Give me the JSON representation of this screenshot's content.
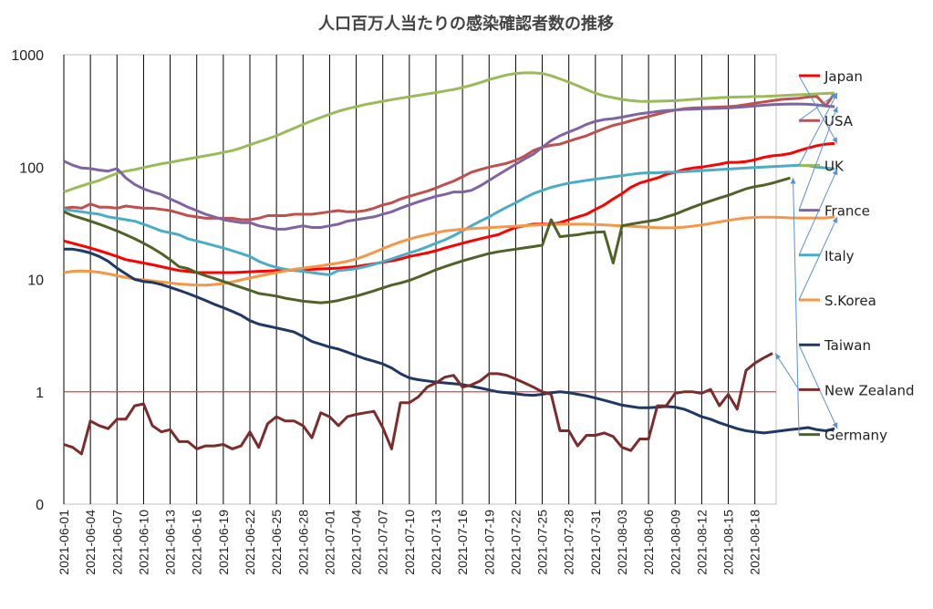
{
  "chart_data": {
    "type": "line",
    "title": "人口百万人当たりの感染確認者数の推移",
    "xlabel": "",
    "ylabel": "",
    "y_scale": "log",
    "ylim": [
      0.1,
      1000
    ],
    "y_ticks": [
      {
        "value": 1000,
        "label": "1000"
      },
      {
        "value": 100,
        "label": "100"
      },
      {
        "value": 10,
        "label": "10"
      },
      {
        "value": 1,
        "label": "1"
      },
      {
        "value": 0.1,
        "label": "0"
      }
    ],
    "x_ticks": [
      "2021-06-01",
      "2021-06-04",
      "2021-06-07",
      "2021-06-10",
      "2021-06-13",
      "2021-06-16",
      "2021-06-19",
      "2021-06-22",
      "2021-06-25",
      "2021-06-28",
      "2021-07-01",
      "2021-07-04",
      "2021-07-07",
      "2021-07-10",
      "2021-07-13",
      "2021-07-16",
      "2021-07-19",
      "2021-07-22",
      "2021-07-25",
      "2021-07-28",
      "2021-07-31",
      "2021-08-03",
      "2021-08-06",
      "2021-08-09",
      "2021-08-12",
      "2021-08-15",
      "2021-08-18"
    ],
    "grid": "vertical lines at each x tick",
    "reference_line": {
      "value": 1,
      "color": "#e04040"
    },
    "legend_position": "right",
    "series": [
      {
        "name": "Japan",
        "color": "#ff0000",
        "values": [
          22,
          21,
          20,
          19,
          18,
          17,
          16,
          15,
          14.5,
          14,
          13.5,
          13,
          12.5,
          12,
          11.8,
          11.5,
          11.5,
          11.5,
          11.5,
          11.5,
          11.6,
          11.7,
          11.8,
          11.9,
          12,
          12,
          12.1,
          12.2,
          12.3,
          12.4,
          12.5,
          12.6,
          12.8,
          13,
          13.4,
          13.8,
          14.2,
          14.6,
          15.2,
          16,
          16.6,
          17.2,
          18,
          19,
          20,
          21,
          22,
          23,
          24,
          25,
          27,
          29,
          30,
          31,
          31,
          31,
          32,
          34,
          36,
          38,
          42,
          46,
          52,
          58,
          66,
          72,
          76,
          80,
          86,
          90,
          95,
          98,
          100,
          103,
          106,
          110,
          110,
          112,
          116,
          122,
          126,
          128,
          132,
          140,
          148,
          155,
          160,
          162
        ]
      },
      {
        "name": "USA",
        "color": "#c0504d",
        "values": [
          43,
          44,
          43,
          47,
          44,
          44,
          43,
          45,
          44,
          43,
          43,
          42,
          41,
          39,
          37,
          36,
          35,
          35,
          35,
          35,
          34,
          34,
          35,
          37,
          37,
          37,
          38,
          38,
          38,
          39,
          40,
          41,
          40,
          40,
          41,
          43,
          46,
          48,
          52,
          55,
          58,
          61,
          65,
          70,
          75,
          82,
          90,
          95,
          100,
          104,
          108,
          115,
          125,
          140,
          150,
          156,
          160,
          170,
          180,
          190,
          205,
          220,
          235,
          245,
          258,
          270,
          282,
          295,
          310,
          322,
          330,
          335,
          338,
          340,
          342,
          345,
          350,
          360,
          370,
          380,
          390,
          400,
          405,
          410,
          420,
          425,
          350,
          455
        ]
      },
      {
        "name": "UK",
        "color": "#9bbb59",
        "values": [
          60,
          64,
          68,
          72,
          76,
          82,
          88,
          92,
          95,
          99,
          103,
          107,
          110,
          114,
          118,
          122,
          126,
          130,
          135,
          140,
          148,
          158,
          168,
          178,
          190,
          205,
          222,
          240,
          258,
          276,
          295,
          314,
          330,
          345,
          360,
          372,
          385,
          398,
          410,
          422,
          435,
          448,
          460,
          475,
          490,
          510,
          535,
          565,
          600,
          630,
          660,
          680,
          690,
          690,
          680,
          650,
          610,
          570,
          530,
          490,
          455,
          430,
          415,
          400,
          390,
          385,
          384,
          386,
          388,
          390,
          395,
          400,
          405,
          410,
          415,
          418,
          420,
          422,
          424,
          425,
          428,
          432,
          436,
          440,
          444,
          448,
          452,
          456
        ]
      },
      {
        "name": "France",
        "color": "#8064a2",
        "values": [
          113,
          104,
          98,
          97,
          94,
          92,
          97,
          80,
          70,
          64,
          60,
          57,
          52,
          48,
          44,
          41,
          38,
          36,
          34,
          33,
          32,
          32,
          30,
          29,
          28,
          28,
          29,
          30,
          29,
          29,
          30,
          31,
          33,
          34,
          35,
          36,
          38,
          40,
          43,
          46,
          49,
          52,
          55,
          57,
          60,
          60,
          62,
          68,
          76,
          85,
          95,
          106,
          118,
          130,
          150,
          172,
          190,
          205,
          220,
          240,
          255,
          265,
          270,
          278,
          288,
          298,
          305,
          312,
          318,
          322,
          326,
          328,
          330,
          332,
          334,
          336,
          340,
          345,
          350,
          355,
          360,
          362,
          364,
          364,
          362,
          358,
          350,
          345
        ]
      },
      {
        "name": "Italy",
        "color": "#4bacc6",
        "values": [
          42,
          41,
          40,
          39,
          38,
          36,
          35,
          34,
          33,
          31,
          29,
          27,
          26,
          25,
          23,
          22,
          21,
          20,
          19,
          18,
          17,
          16,
          14.5,
          13.5,
          12.8,
          12.3,
          12,
          11.8,
          11.5,
          11.2,
          11,
          12,
          12.2,
          12.5,
          13,
          13.6,
          14.4,
          15.2,
          16.2,
          17.2,
          18.2,
          19.5,
          21,
          22.5,
          24.5,
          27,
          30,
          33,
          36,
          40,
          44,
          48,
          53,
          58,
          62,
          66,
          69,
          72,
          74,
          76,
          78,
          80,
          82,
          84,
          86,
          88,
          89,
          89,
          90,
          90,
          91,
          92,
          93,
          94,
          95,
          96,
          97,
          98,
          99,
          100,
          101,
          102,
          103,
          104,
          103,
          100,
          98,
          96
        ]
      },
      {
        "name": "S.Korea",
        "color": "#f79646",
        "values": [
          11.5,
          11.8,
          11.9,
          11.8,
          11.6,
          11.2,
          10.8,
          10.4,
          10.1,
          9.9,
          9.7,
          9.5,
          9.3,
          9.1,
          9.0,
          8.9,
          8.9,
          9.0,
          9.2,
          9.5,
          9.9,
          10.3,
          10.7,
          11.1,
          11.5,
          11.9,
          12.3,
          12.6,
          12.9,
          13.2,
          13.6,
          14.0,
          14.5,
          15.2,
          16.2,
          17.4,
          18.8,
          20.2,
          21.6,
          22.8,
          24,
          25,
          26,
          27,
          27.5,
          28,
          28.3,
          28.6,
          28.9,
          29.2,
          29.5,
          29.8,
          30.1,
          30.4,
          30.6,
          30.8,
          31,
          31,
          31,
          31,
          30.8,
          30.6,
          30.3,
          30,
          29.7,
          29.4,
          29.1,
          28.9,
          28.8,
          28.9,
          29.2,
          29.8,
          30.5,
          31.5,
          32.5,
          33.5,
          34.5,
          35.2,
          35.6,
          35.8,
          35.8,
          35.6,
          35.3,
          35.2,
          35.2,
          35.2,
          35.2,
          36
        ]
      },
      {
        "name": "Taiwan",
        "color": "#1f3864",
        "values": [
          18.6,
          18.6,
          18.0,
          17.2,
          16.0,
          14.5,
          12.6,
          11.2,
          10,
          9.6,
          9.4,
          9.0,
          8.5,
          8.0,
          7.5,
          7.0,
          6.5,
          6.0,
          5.6,
          5.2,
          4.8,
          4.3,
          4.0,
          3.85,
          3.7,
          3.55,
          3.4,
          3.1,
          2.8,
          2.65,
          2.5,
          2.4,
          2.25,
          2.1,
          1.97,
          1.87,
          1.77,
          1.63,
          1.45,
          1.33,
          1.28,
          1.25,
          1.22,
          1.2,
          1.18,
          1.16,
          1.12,
          1.08,
          1.04,
          1.0,
          0.98,
          0.96,
          0.94,
          0.93,
          0.95,
          0.98,
          1.0,
          0.98,
          0.95,
          0.92,
          0.88,
          0.84,
          0.8,
          0.76,
          0.74,
          0.72,
          0.72,
          0.73,
          0.74,
          0.73,
          0.7,
          0.65,
          0.6,
          0.57,
          0.53,
          0.5,
          0.47,
          0.45,
          0.44,
          0.43,
          0.44,
          0.45,
          0.46,
          0.47,
          0.48,
          0.46,
          0.45,
          0.47
        ]
      },
      {
        "name": "New Zealand",
        "color": "#7b2c2c",
        "values": [
          0.34,
          0.32,
          0.28,
          0.55,
          0.5,
          0.47,
          0.57,
          0.57,
          0.75,
          0.78,
          0.5,
          0.44,
          0.46,
          0.36,
          0.36,
          0.31,
          0.33,
          0.33,
          0.34,
          0.31,
          0.33,
          0.44,
          0.32,
          0.52,
          0.6,
          0.55,
          0.55,
          0.5,
          0.39,
          0.65,
          0.6,
          0.5,
          0.6,
          0.63,
          0.65,
          0.67,
          0.48,
          0.31,
          0.8,
          0.8,
          0.9,
          1.1,
          1.2,
          1.35,
          1.4,
          1.1,
          1.15,
          1.25,
          1.45,
          1.45,
          1.4,
          1.3,
          1.2,
          1.1,
          1.0,
          0.95,
          0.45,
          0.45,
          0.33,
          0.41,
          0.41,
          0.43,
          0.4,
          0.32,
          0.3,
          0.38,
          0.38,
          0.75,
          0.75,
          0.97,
          1.0,
          1.0,
          0.97,
          1.05,
          0.75,
          0.95,
          0.7,
          1.55,
          1.8,
          2.0,
          2.2
        ]
      },
      {
        "name": "Germany",
        "color": "#4f6228",
        "values": [
          40,
          37,
          35,
          33,
          31,
          29,
          27,
          25,
          23,
          21,
          19,
          17,
          15,
          13,
          12.5,
          11.5,
          10.8,
          10.2,
          9.6,
          9.0,
          8.5,
          8.0,
          7.5,
          7.3,
          7.1,
          6.8,
          6.6,
          6.4,
          6.3,
          6.2,
          6.3,
          6.5,
          6.8,
          7.1,
          7.5,
          7.9,
          8.4,
          8.9,
          9.3,
          9.8,
          10.5,
          11.3,
          12.2,
          13,
          13.8,
          14.6,
          15.4,
          16.2,
          17,
          17.6,
          18.1,
          18.6,
          19.1,
          19.6,
          20.2,
          34,
          24,
          24.5,
          25,
          25.8,
          26.3,
          26.5,
          14,
          30,
          31,
          32,
          33,
          34,
          36,
          38,
          41,
          44,
          47,
          50,
          53,
          56,
          60,
          64,
          67,
          69,
          72,
          76,
          80
        ]
      }
    ]
  }
}
